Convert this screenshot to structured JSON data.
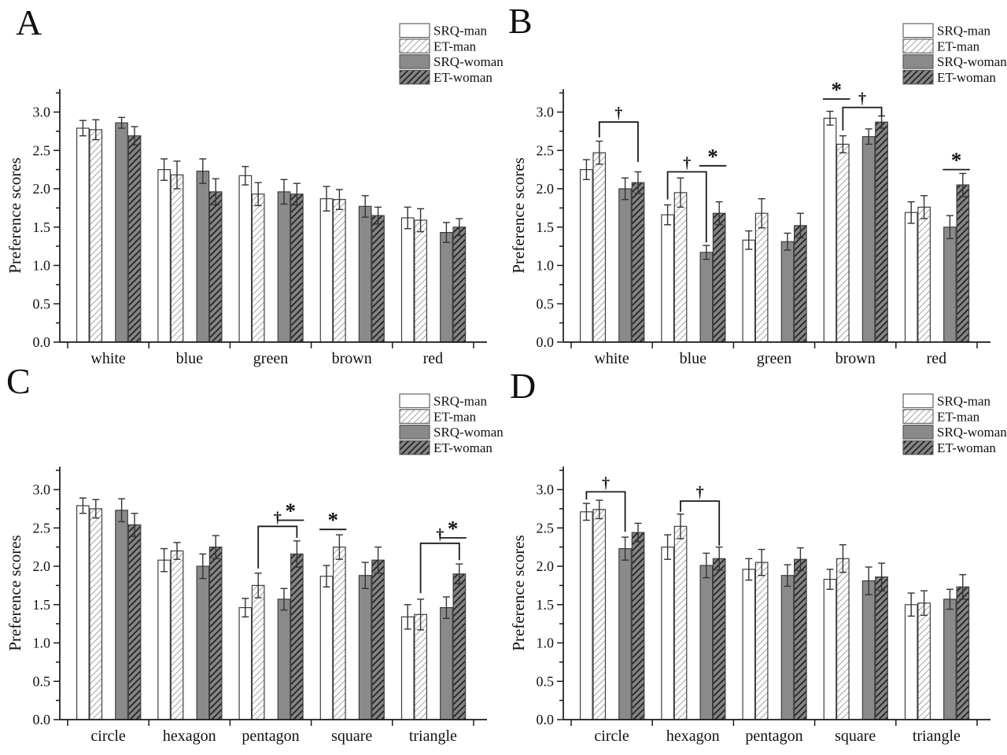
{
  "figure": {
    "ylabel": "Preference scores",
    "ytick_labels": [
      "0.0",
      "0.5",
      "1.0",
      "1.5",
      "2.0",
      "2.5",
      "3.0"
    ],
    "legend_labels": [
      "SRQ-man",
      "ET-man",
      "SRQ-woman",
      "ET-woman"
    ],
    "significance_symbols": {
      "dagger": "†",
      "asterisk": "*"
    },
    "colors": {
      "background": "#ffffff",
      "axis": "#1a1a1a",
      "bar_outline": "#3f3f3f",
      "solid_gray": "#8a8a8a",
      "hatch_gray_bg": "#848484",
      "hatch_light_line": "#b4b4b4",
      "hatch_dark_line": "#222222",
      "error_bar": "#333333",
      "text": "#111111"
    }
  },
  "chart_data": [
    {
      "panel": "A",
      "type": "bar",
      "ylabel": "Preference scores",
      "ylim": [
        0,
        3.3
      ],
      "yticks": [
        0.0,
        0.5,
        1.0,
        1.5,
        2.0,
        2.5,
        3.0
      ],
      "categories": [
        "white",
        "blue",
        "green",
        "brown",
        "red"
      ],
      "series": [
        {
          "name": "SRQ-man",
          "style": "open",
          "values": [
            2.79,
            2.25,
            2.17,
            1.87,
            1.62
          ],
          "errors": [
            0.1,
            0.14,
            0.12,
            0.16,
            0.14
          ]
        },
        {
          "name": "ET-man",
          "style": "hatch-light",
          "values": [
            2.77,
            2.18,
            1.93,
            1.86,
            1.59
          ],
          "errors": [
            0.13,
            0.18,
            0.15,
            0.13,
            0.15
          ]
        },
        {
          "name": "SRQ-woman",
          "style": "solid",
          "values": [
            2.86,
            2.23,
            1.96,
            1.77,
            1.43
          ],
          "errors": [
            0.07,
            0.16,
            0.16,
            0.14,
            0.13
          ]
        },
        {
          "name": "ET-woman",
          "style": "hatch-dark",
          "values": [
            2.69,
            1.96,
            1.93,
            1.65,
            1.5
          ],
          "errors": [
            0.12,
            0.17,
            0.14,
            0.11,
            0.11
          ]
        }
      ],
      "annotations": []
    },
    {
      "panel": "B",
      "type": "bar",
      "ylabel": "Preference scores",
      "ylim": [
        0,
        3.3
      ],
      "yticks": [
        0.0,
        0.5,
        1.0,
        1.5,
        2.0,
        2.5,
        3.0
      ],
      "categories": [
        "white",
        "blue",
        "green",
        "brown",
        "red"
      ],
      "series": [
        {
          "name": "SRQ-man",
          "style": "open",
          "values": [
            2.25,
            1.66,
            1.33,
            2.92,
            1.69
          ],
          "errors": [
            0.13,
            0.13,
            0.12,
            0.09,
            0.14
          ]
        },
        {
          "name": "ET-man",
          "style": "hatch-light",
          "values": [
            2.47,
            1.95,
            1.68,
            2.58,
            1.76
          ],
          "errors": [
            0.15,
            0.19,
            0.19,
            0.11,
            0.15
          ]
        },
        {
          "name": "SRQ-woman",
          "style": "solid",
          "values": [
            2.0,
            1.17,
            1.31,
            2.68,
            1.5
          ],
          "errors": [
            0.14,
            0.09,
            0.11,
            0.1,
            0.15
          ]
        },
        {
          "name": "ET-woman",
          "style": "hatch-dark",
          "values": [
            2.08,
            1.68,
            1.52,
            2.87,
            2.05
          ],
          "errors": [
            0.14,
            0.15,
            0.16,
            0.08,
            0.15
          ]
        }
      ],
      "annotations": [
        {
          "group": 0,
          "symbol": "†",
          "kind": "bracket",
          "from": 1,
          "to": 3,
          "y": 2.87,
          "dropFrom": 0.2,
          "dropTo": 0.52
        },
        {
          "group": 1,
          "symbol": "†",
          "kind": "bracket",
          "from": 0,
          "to": 2,
          "y": 2.22,
          "dropFrom": 0.36,
          "dropTo": 0.92
        },
        {
          "group": 1,
          "symbol": "*",
          "kind": "line",
          "from": 2,
          "to": 3,
          "y": 2.3
        },
        {
          "group": 3,
          "symbol": "*",
          "kind": "line",
          "from": 0,
          "to": 1,
          "y": 3.17
        },
        {
          "group": 3,
          "symbol": "†",
          "kind": "bracket",
          "from": 1,
          "to": 3,
          "y": 3.06,
          "dropFrom": 0.3,
          "dropTo": 0.12
        },
        {
          "group": 4,
          "symbol": "*",
          "kind": "line",
          "from": 2,
          "to": 3,
          "y": 2.25
        }
      ]
    },
    {
      "panel": "C",
      "type": "bar",
      "ylabel": "Preference scores",
      "ylim": [
        0,
        3.3
      ],
      "yticks": [
        0.0,
        0.5,
        1.0,
        1.5,
        2.0,
        2.5,
        3.0
      ],
      "categories": [
        "circle",
        "hexagon",
        "pentagon",
        "square",
        "triangle"
      ],
      "series": [
        {
          "name": "SRQ-man",
          "style": "open",
          "values": [
            2.79,
            2.08,
            1.46,
            1.87,
            1.34
          ],
          "errors": [
            0.1,
            0.15,
            0.12,
            0.14,
            0.16
          ]
        },
        {
          "name": "ET-man",
          "style": "hatch-light",
          "values": [
            2.75,
            2.2,
            1.75,
            2.25,
            1.37
          ],
          "errors": [
            0.12,
            0.11,
            0.16,
            0.16,
            0.2
          ]
        },
        {
          "name": "SRQ-woman",
          "style": "solid",
          "values": [
            2.73,
            2.0,
            1.57,
            1.88,
            1.46
          ],
          "errors": [
            0.15,
            0.16,
            0.14,
            0.17,
            0.14
          ]
        },
        {
          "name": "ET-woman",
          "style": "hatch-dark",
          "values": [
            2.54,
            2.25,
            2.16,
            2.08,
            1.9
          ],
          "errors": [
            0.15,
            0.15,
            0.17,
            0.17,
            0.13
          ]
        }
      ],
      "annotations": [
        {
          "group": 2,
          "symbol": "†",
          "kind": "bracket",
          "from": 1,
          "to": 3,
          "y": 2.52,
          "dropFrom": 0.55,
          "dropTo": 0.15
        },
        {
          "group": 2,
          "symbol": "*",
          "kind": "line",
          "from": 2,
          "to": 3,
          "y": 2.6
        },
        {
          "group": 3,
          "symbol": "*",
          "kind": "line",
          "from": 0,
          "to": 1,
          "y": 2.48
        },
        {
          "group": 4,
          "symbol": "†",
          "kind": "bracket",
          "from": 1,
          "to": 3,
          "y": 2.3,
          "dropFrom": 0.65,
          "dropTo": 0.22
        },
        {
          "group": 4,
          "symbol": "*",
          "kind": "line",
          "from": 2,
          "to": 3,
          "y": 2.37
        }
      ]
    },
    {
      "panel": "D",
      "type": "bar",
      "ylabel": "Preference scores",
      "ylim": [
        0,
        3.3
      ],
      "yticks": [
        0.0,
        0.5,
        1.0,
        1.5,
        2.0,
        2.5,
        3.0
      ],
      "categories": [
        "circle",
        "hexagon",
        "pentagon",
        "square",
        "triangle"
      ],
      "series": [
        {
          "name": "SRQ-man",
          "style": "open",
          "values": [
            2.71,
            2.25,
            1.96,
            1.83,
            1.5
          ],
          "errors": [
            0.11,
            0.16,
            0.14,
            0.13,
            0.15
          ]
        },
        {
          "name": "ET-man",
          "style": "hatch-light",
          "values": [
            2.74,
            2.52,
            2.05,
            2.1,
            1.52
          ],
          "errors": [
            0.12,
            0.16,
            0.17,
            0.18,
            0.16
          ]
        },
        {
          "name": "SRQ-woman",
          "style": "solid",
          "values": [
            2.23,
            2.01,
            1.88,
            1.81,
            1.57
          ],
          "errors": [
            0.15,
            0.16,
            0.14,
            0.18,
            0.13
          ]
        },
        {
          "name": "ET-woman",
          "style": "hatch-dark",
          "values": [
            2.44,
            2.1,
            2.09,
            1.86,
            1.73
          ],
          "errors": [
            0.12,
            0.15,
            0.15,
            0.18,
            0.16
          ]
        }
      ],
      "annotations": [
        {
          "group": 0,
          "symbol": "†",
          "kind": "bracket",
          "from": 0,
          "to": 2,
          "y": 2.97,
          "dropFrom": 0.1,
          "dropTo": 0.52
        },
        {
          "group": 1,
          "symbol": "†",
          "kind": "bracket",
          "from": 1,
          "to": 3,
          "y": 2.85,
          "dropFrom": 0.14,
          "dropTo": 0.58
        }
      ]
    }
  ]
}
